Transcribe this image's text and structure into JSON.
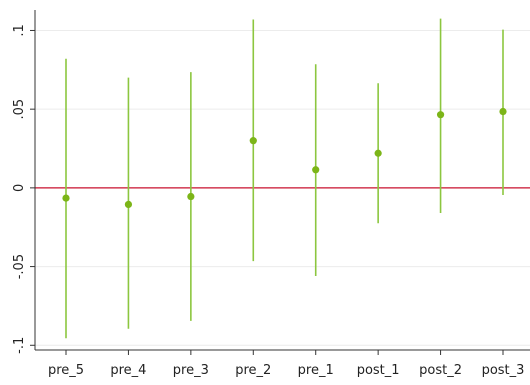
{
  "chart_data": {
    "type": "scatter",
    "subtype": "coefficient-plot",
    "title": "",
    "xlabel": "",
    "ylabel": "",
    "categories": [
      "pre_5",
      "pre_4",
      "pre_3",
      "pre_2",
      "pre_1",
      "post_1",
      "post_2",
      "post_3"
    ],
    "series": [
      {
        "estimates": [
          -0.0065,
          -0.0105,
          -0.0055,
          0.03,
          0.0115,
          0.022,
          0.0465,
          0.0485
        ],
        "ci_low": [
          -0.0955,
          -0.0895,
          -0.0845,
          -0.0465,
          -0.056,
          -0.0225,
          -0.016,
          -0.0045
        ],
        "ci_high": [
          0.082,
          0.07,
          0.0735,
          0.107,
          0.0785,
          0.0665,
          0.1075,
          0.1005
        ]
      }
    ],
    "yticks": [
      0.1,
      0.05,
      0,
      -0.05,
      -0.1
    ],
    "ytick_labels": [
      ".1",
      ".05",
      "0",
      "-.05",
      "-.1"
    ],
    "ylim": [
      -0.103,
      0.113
    ],
    "reference_line": {
      "y": 0,
      "color": "#c8102e"
    },
    "grid": {
      "horizontal": true,
      "vertical": false,
      "color": "#ececec"
    },
    "colors": {
      "marker": "#7cb518",
      "ci": "#8cc63f",
      "axis": "#333333"
    },
    "legend": "none"
  }
}
